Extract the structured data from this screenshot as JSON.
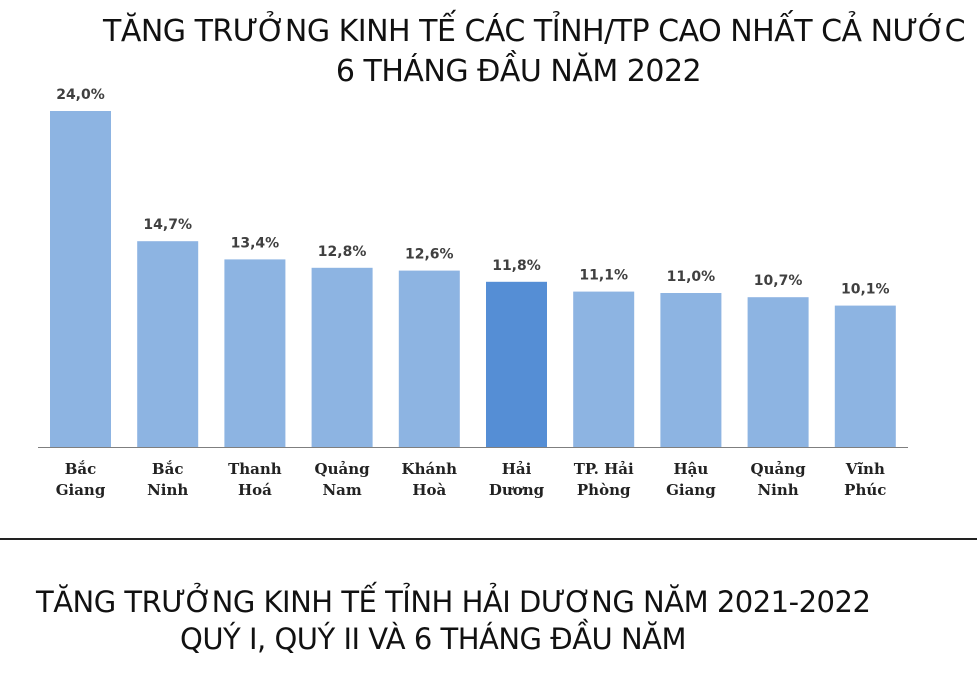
{
  "chart_data": {
    "type": "bar",
    "title": "TĂNG TRƯỞNG KINH TẾ CÁC TỈNH/TP CAO NHẤT CẢ NƯỚC",
    "subtitle": "6 THÁNG ĐẦU NĂM 2022",
    "categories": [
      [
        "Bắc",
        "Giang"
      ],
      [
        "Bắc",
        "Ninh"
      ],
      [
        "Thanh",
        "Hoá"
      ],
      [
        "Quảng",
        "Nam"
      ],
      [
        "Khánh",
        "Hoà"
      ],
      [
        "Hải",
        "Dương"
      ],
      [
        "TP. Hải",
        "Phòng"
      ],
      [
        "Hậu",
        "Giang"
      ],
      [
        "Quảng",
        "Ninh"
      ],
      [
        "Vĩnh",
        "Phúc"
      ]
    ],
    "values": [
      24.0,
      14.7,
      13.4,
      12.8,
      12.6,
      11.8,
      11.1,
      11.0,
      10.7,
      10.1
    ],
    "data_labels": [
      "24,0%",
      "14,7%",
      "13,4%",
      "12,8%",
      "12,6%",
      "11,8%",
      "11,1%",
      "11,0%",
      "10,7%",
      "10,1%"
    ],
    "highlight_index": 5,
    "ylim": [
      0,
      24
    ],
    "grid": false,
    "colors": {
      "bar": "#8db4e2",
      "highlight": "#558ed5",
      "axis": "#7f7f7f",
      "label": "#404040",
      "category": "#222222"
    }
  },
  "section2": {
    "title_line1": "TĂNG TRƯỞNG KINH TẾ TỈNH HẢI DƯƠNG NĂM 2021-2022",
    "title_line2": "QUÝ I, QUÝ II VÀ 6 THÁNG ĐẦU NĂM"
  }
}
